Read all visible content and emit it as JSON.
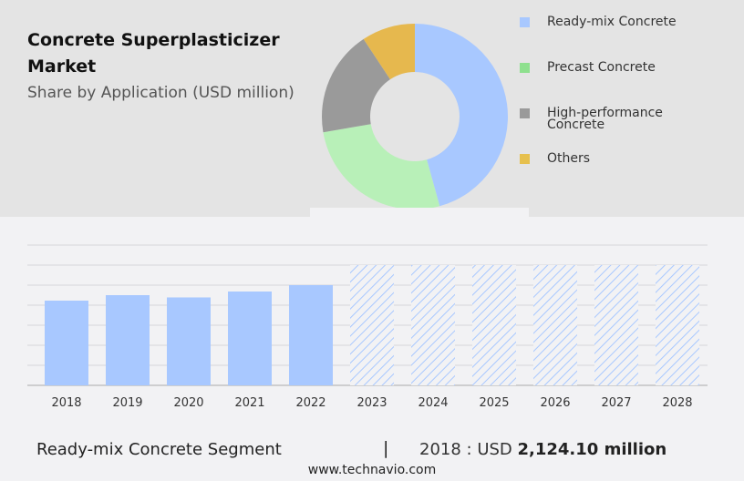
{
  "header": {
    "title": "Concrete Superplasticizer Market",
    "subtitle": "Share by Application (USD million)"
  },
  "chart_data": [
    {
      "type": "pie",
      "donut": true,
      "categories": [
        "Ready-mix Concrete",
        "Precast Concrete",
        "High-performance Concrete",
        "Others"
      ],
      "values": [
        45.7,
        26.6,
        18.4,
        9.3
      ],
      "colors": [
        "#a8c8ff",
        "#b8f0b8",
        "#9a9a9a",
        "#e6b84e"
      ],
      "legend_colors": [
        "#a8c8ff",
        "#8ee08e",
        "#9a9a9a",
        "#e6c04e"
      ],
      "legend": "right"
    },
    {
      "type": "bar",
      "categories": [
        "2018",
        "2019",
        "2020",
        "2021",
        "2022",
        "2023",
        "2024",
        "2025",
        "2026",
        "2027",
        "2028"
      ],
      "values": [
        2124.1,
        2261,
        2204,
        2352,
        2512,
        null,
        null,
        null,
        null,
        null,
        null
      ],
      "forecast_from": "2023",
      "ylim": [
        0,
        3517
      ],
      "grid": true,
      "color": "#a8c8ff"
    }
  ],
  "footer": {
    "segment": "Ready-mix Concrete Segment",
    "separator": "|",
    "year_label": "2018 : USD ",
    "value": "2,124.10 million",
    "site": "www.technavio.com"
  }
}
